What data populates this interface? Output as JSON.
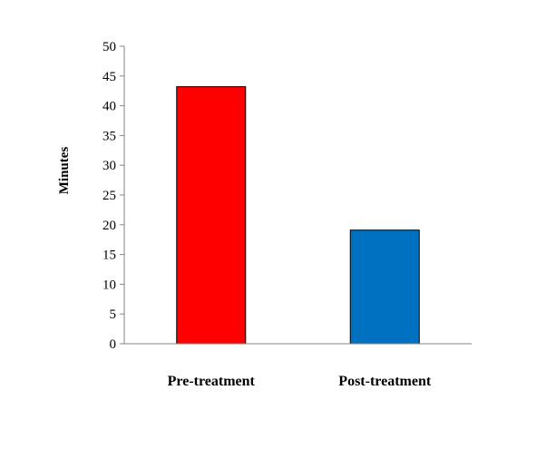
{
  "chart_data": {
    "type": "bar",
    "categories": [
      "Pre-treatment",
      "Post-treatment"
    ],
    "values": [
      43.2,
      19.1
    ],
    "colors": [
      "#ff0000",
      "#0070c0"
    ],
    "xlabel": "",
    "ylabel": "Minutes",
    "ylim": [
      0,
      50
    ],
    "yticks": [
      0,
      5,
      10,
      15,
      20,
      25,
      30,
      35,
      40,
      45,
      50
    ],
    "grid": false,
    "legend": "none"
  }
}
